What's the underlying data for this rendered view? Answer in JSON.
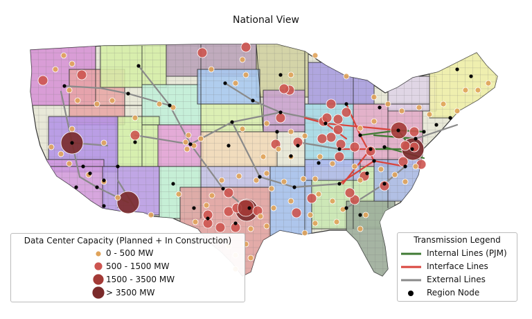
{
  "title": "National View",
  "colors": {
    "ocean": "#ffffff",
    "border": "#333333",
    "county_line": "#777777",
    "internal_line": "#3f7a33",
    "interface_line": "#d9443c",
    "external_line": "#8a8a8a",
    "node": "#000000",
    "dc_small": "#e0a35a",
    "dc_medium": "#cd5550",
    "dc_large": "#a33a36",
    "dc_xlarge": "#7a2a2a"
  },
  "data_center_legend": {
    "title": "Data Center Capacity (Planned + In Construction)",
    "items": [
      {
        "label": "0 - 500 MW",
        "color_key": "dc_small"
      },
      {
        "label": "500 - 1500 MW",
        "color_key": "dc_medium"
      },
      {
        "label": "1500 - 3500 MW",
        "color_key": "dc_large"
      },
      {
        "label": "> 3500 MW",
        "color_key": "dc_xlarge"
      }
    ]
  },
  "transmission_legend": {
    "title": "Transmission Legend",
    "items": [
      {
        "label": "Internal Lines (PJM)",
        "symbol": "line",
        "color_key": "internal_line"
      },
      {
        "label": "Interface Lines",
        "symbol": "line",
        "color_key": "interface_line"
      },
      {
        "label": "External Lines",
        "symbol": "line",
        "color_key": "external_line"
      },
      {
        "label": "Region Node",
        "symbol": "dot",
        "color_key": "node"
      }
    ]
  }
}
